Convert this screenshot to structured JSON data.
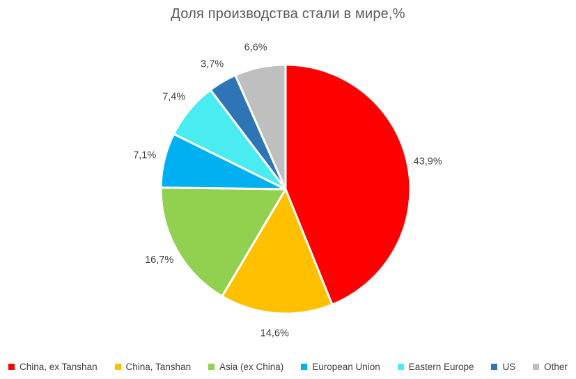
{
  "title": "Доля производства стали в мире,%",
  "chart_data": {
    "type": "pie",
    "title": "Доля производства стали в мире,%",
    "categories": [
      "China, ex Tanshan",
      "China, Tanshan",
      "Asia (ex China)",
      "European Union",
      "Eastern Europe",
      "US",
      "Other"
    ],
    "values": [
      43.9,
      14.6,
      16.7,
      7.1,
      7.4,
      3.7,
      6.6
    ],
    "labels": [
      "43,9%",
      "14,6%",
      "16,7%",
      "7,1%",
      "7,4%",
      "3,7%",
      "6,6%"
    ],
    "colors": [
      "#FF0000",
      "#FFC000",
      "#92D050",
      "#00B0F0",
      "#4BEBF2",
      "#2E75B6",
      "#BFBFBF"
    ],
    "start_angle_deg": 0,
    "direction": "clockwise",
    "legend_position": "bottom",
    "labels_position": "outside",
    "title_color": "#595959",
    "label_color": "#404040",
    "slice_border_color": "#FFFFFF",
    "background_color": "#FFFFFF"
  }
}
